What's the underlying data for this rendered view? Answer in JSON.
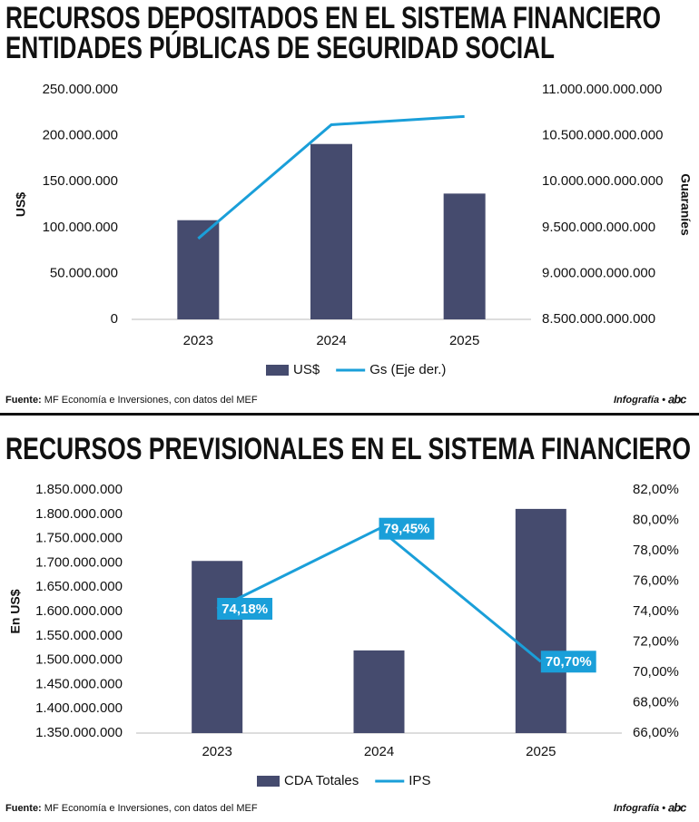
{
  "chart_data": [
    {
      "type": "bar_line",
      "title": [
        "RECURSOS DEPOSITADOS EN EL SISTEMA FINANCIERO",
        "ENTIDADES PÚBLICAS DE SEGURIDAD SOCIAL"
      ],
      "y_label": "US$",
      "y2_label": "Guaraníes",
      "categories": [
        "2023",
        "2024",
        "2025"
      ],
      "series": [
        {
          "name": "US$",
          "type": "bar",
          "color": "#454b6e",
          "values": [
            108000000,
            191000000,
            137000000
          ]
        },
        {
          "name": "Gs (Eje der.)",
          "type": "line",
          "axis": "y2",
          "color": "#1a9fd9",
          "values": [
            9380000000000,
            10620000000000,
            10710000000000
          ]
        }
      ],
      "ylim": [
        0,
        250000000
      ],
      "yticks": [
        {
          "value": 0,
          "label": "0"
        },
        {
          "value": 50000000,
          "label": "50.000.000"
        },
        {
          "value": 100000000,
          "label": "100.000.000"
        },
        {
          "value": 150000000,
          "label": "150.000.000"
        },
        {
          "value": 200000000,
          "label": "200.000.000"
        },
        {
          "value": 250000000,
          "label": "250.000.000"
        }
      ],
      "y2lim": [
        8500000000000,
        11000000000000
      ],
      "y2ticks": [
        {
          "value": 8500000000000,
          "label": "8.500.000.000.000"
        },
        {
          "value": 9000000000000,
          "label": "9.000.000.000.000"
        },
        {
          "value": 9500000000000,
          "label": "9.500.000.000.000"
        },
        {
          "value": 10000000000000,
          "label": "10.000.000.000.000"
        },
        {
          "value": 10500000000000,
          "label": "10.500.000.000.000"
        },
        {
          "value": 11000000000000,
          "label": "11.000.000.000.000"
        }
      ],
      "source_label": "Fuente:",
      "source": "MF Economía e Inversiones, con datos del MEF",
      "credit": "Infografía •",
      "logo": "abc"
    },
    {
      "type": "bar_line",
      "title": [
        "RECURSOS PREVISIONALES EN EL SISTEMA FINANCIERO"
      ],
      "y_label": "En US$",
      "categories": [
        "2023",
        "2024",
        "2025"
      ],
      "series": [
        {
          "name": "CDA Totales",
          "type": "bar",
          "color": "#454b6e",
          "values": [
            1704000000,
            1520000000,
            1811000000
          ]
        },
        {
          "name": "IPS",
          "type": "line",
          "axis": "y2",
          "color": "#1a9fd9",
          "values": [
            74.18,
            79.45,
            70.7
          ],
          "value_labels": [
            "74,18%",
            "79,45%",
            "70,70%"
          ]
        }
      ],
      "ylim": [
        1350000000,
        1850000000
      ],
      "yticks": [
        {
          "value": 1350000000,
          "label": "1.350.000.000"
        },
        {
          "value": 1400000000,
          "label": "1.400.000.000"
        },
        {
          "value": 1450000000,
          "label": "1.450.000.000"
        },
        {
          "value": 1500000000,
          "label": "1.500.000.000"
        },
        {
          "value": 1550000000,
          "label": "1.550.000.000"
        },
        {
          "value": 1600000000,
          "label": "1.600.000.000"
        },
        {
          "value": 1650000000,
          "label": "1.650.000.000"
        },
        {
          "value": 1700000000,
          "label": "1.700.000.000"
        },
        {
          "value": 1750000000,
          "label": "1.750.000.000"
        },
        {
          "value": 1800000000,
          "label": "1.800.000.000"
        },
        {
          "value": 1850000000,
          "label": "1.850.000.000"
        }
      ],
      "y2lim": [
        66,
        82
      ],
      "y2ticks": [
        {
          "value": 66,
          "label": "66,00%"
        },
        {
          "value": 68,
          "label": "68,00%"
        },
        {
          "value": 70,
          "label": "70,00%"
        },
        {
          "value": 72,
          "label": "72,00%"
        },
        {
          "value": 74,
          "label": "74,00%"
        },
        {
          "value": 76,
          "label": "76,00%"
        },
        {
          "value": 78,
          "label": "78,00%"
        },
        {
          "value": 80,
          "label": "80,00%"
        },
        {
          "value": 82,
          "label": "82,00%"
        }
      ],
      "source_label": "Fuente:",
      "source": "MF Economía e Inversiones, con datos del MEF",
      "credit": "Infografía •",
      "logo": "abc"
    }
  ]
}
